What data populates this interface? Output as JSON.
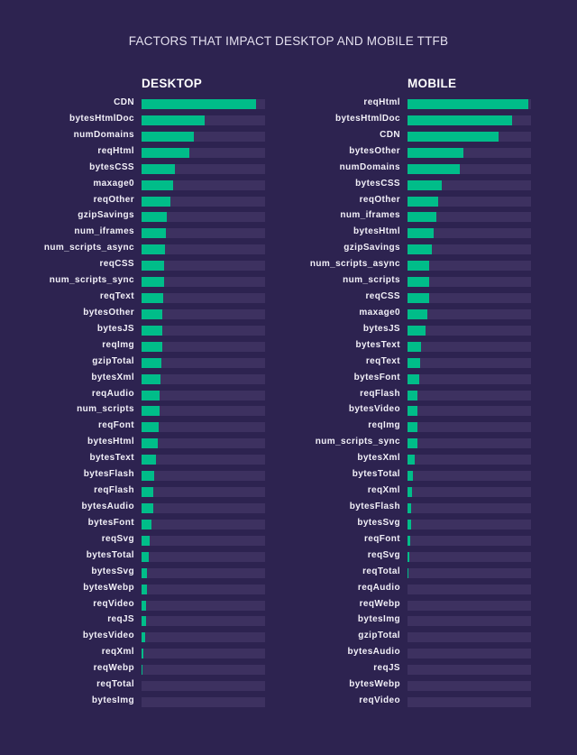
{
  "title": "FACTORS THAT IMPACT DESKTOP AND MOBILE TTFB",
  "colors": {
    "background": "#2d2350",
    "track": "#3d3160",
    "bar": "#00bd89",
    "text": "#ffffff"
  },
  "desktop": {
    "heading": "DESKTOP",
    "rows": [
      {
        "label": "CDN",
        "value": 0.93
      },
      {
        "label": "bytesHtmlDoc",
        "value": 0.51
      },
      {
        "label": "numDomains",
        "value": 0.42
      },
      {
        "label": "reqHtml",
        "value": 0.39
      },
      {
        "label": "bytesCSS",
        "value": 0.27
      },
      {
        "label": "maxage0",
        "value": 0.255
      },
      {
        "label": "reqOther",
        "value": 0.23
      },
      {
        "label": "gzipSavings",
        "value": 0.205
      },
      {
        "label": "num_iframes",
        "value": 0.195
      },
      {
        "label": "num_scripts_async",
        "value": 0.19
      },
      {
        "label": "reqCSS",
        "value": 0.185
      },
      {
        "label": "num_scripts_sync",
        "value": 0.18
      },
      {
        "label": "reqText",
        "value": 0.175
      },
      {
        "label": "bytesOther",
        "value": 0.17
      },
      {
        "label": "bytesJS",
        "value": 0.168
      },
      {
        "label": "reqImg",
        "value": 0.165
      },
      {
        "label": "gzipTotal",
        "value": 0.16
      },
      {
        "label": "bytesXml",
        "value": 0.153
      },
      {
        "label": "reqAudio",
        "value": 0.147
      },
      {
        "label": "num_scripts",
        "value": 0.145
      },
      {
        "label": "reqFont",
        "value": 0.142
      },
      {
        "label": "bytesHtml",
        "value": 0.13
      },
      {
        "label": "bytesText",
        "value": 0.117
      },
      {
        "label": "bytesFlash",
        "value": 0.105
      },
      {
        "label": "reqFlash",
        "value": 0.098
      },
      {
        "label": "bytesAudio",
        "value": 0.098
      },
      {
        "label": "bytesFont",
        "value": 0.08
      },
      {
        "label": "reqSvg",
        "value": 0.066
      },
      {
        "label": "bytesTotal",
        "value": 0.058
      },
      {
        "label": "bytesSvg",
        "value": 0.047
      },
      {
        "label": "bytesWebp",
        "value": 0.043
      },
      {
        "label": "reqVideo",
        "value": 0.036
      },
      {
        "label": "reqJS",
        "value": 0.033
      },
      {
        "label": "bytesVideo",
        "value": 0.026
      },
      {
        "label": "reqXml",
        "value": 0.018
      },
      {
        "label": "reqWebp",
        "value": 0.004
      },
      {
        "label": "reqTotal",
        "value": 0.0
      },
      {
        "label": "bytesImg",
        "value": 0.0
      }
    ]
  },
  "mobile": {
    "heading": "MOBILE",
    "rows": [
      {
        "label": "reqHtml",
        "value": 0.98
      },
      {
        "label": "bytesHtmlDoc",
        "value": 0.85
      },
      {
        "label": "CDN",
        "value": 0.74
      },
      {
        "label": "bytesOther",
        "value": 0.455
      },
      {
        "label": "numDomains",
        "value": 0.42
      },
      {
        "label": "bytesCSS",
        "value": 0.28
      },
      {
        "label": "reqOther",
        "value": 0.25
      },
      {
        "label": "num_iframes",
        "value": 0.23
      },
      {
        "label": "bytesHtml",
        "value": 0.21
      },
      {
        "label": "gzipSavings",
        "value": 0.197
      },
      {
        "label": "num_scripts_async",
        "value": 0.177
      },
      {
        "label": "num_scripts",
        "value": 0.175
      },
      {
        "label": "reqCSS",
        "value": 0.172
      },
      {
        "label": "maxage0",
        "value": 0.16
      },
      {
        "label": "bytesJS",
        "value": 0.146
      },
      {
        "label": "bytesText",
        "value": 0.113
      },
      {
        "label": "reqText",
        "value": 0.102
      },
      {
        "label": "bytesFont",
        "value": 0.095
      },
      {
        "label": "reqFlash",
        "value": 0.077
      },
      {
        "label": "bytesVideo",
        "value": 0.077
      },
      {
        "label": "reqImg",
        "value": 0.077
      },
      {
        "label": "num_scripts_sync",
        "value": 0.077
      },
      {
        "label": "bytesXml",
        "value": 0.058
      },
      {
        "label": "bytesTotal",
        "value": 0.047
      },
      {
        "label": "reqXml",
        "value": 0.036
      },
      {
        "label": "bytesFlash",
        "value": 0.029
      },
      {
        "label": "bytesSvg",
        "value": 0.026
      },
      {
        "label": "reqFont",
        "value": 0.022
      },
      {
        "label": "reqSvg",
        "value": 0.015
      },
      {
        "label": "reqTotal",
        "value": 0.005
      },
      {
        "label": "reqAudio",
        "value": 0.0
      },
      {
        "label": "reqWebp",
        "value": 0.0
      },
      {
        "label": "bytesImg",
        "value": 0.0
      },
      {
        "label": "gzipTotal",
        "value": 0.0
      },
      {
        "label": "bytesAudio",
        "value": 0.0
      },
      {
        "label": "reqJS",
        "value": 0.0
      },
      {
        "label": "bytesWebp",
        "value": 0.0
      },
      {
        "label": "reqVideo",
        "value": 0.0
      }
    ]
  },
  "chart_data": [
    {
      "type": "bar",
      "orientation": "horizontal",
      "title": "FACTORS THAT IMPACT DESKTOP AND MOBILE TTFB",
      "subtitle": "DESKTOP",
      "xlabel": "",
      "ylabel": "",
      "xlim": [
        0,
        1
      ],
      "grid": false,
      "legend": null,
      "categories": [
        "CDN",
        "bytesHtmlDoc",
        "numDomains",
        "reqHtml",
        "bytesCSS",
        "maxage0",
        "reqOther",
        "gzipSavings",
        "num_iframes",
        "num_scripts_async",
        "reqCSS",
        "num_scripts_sync",
        "reqText",
        "bytesOther",
        "bytesJS",
        "reqImg",
        "gzipTotal",
        "bytesXml",
        "reqAudio",
        "num_scripts",
        "reqFont",
        "bytesHtml",
        "bytesText",
        "bytesFlash",
        "reqFlash",
        "bytesAudio",
        "bytesFont",
        "reqSvg",
        "bytesTotal",
        "bytesSvg",
        "bytesWebp",
        "reqVideo",
        "reqJS",
        "bytesVideo",
        "reqXml",
        "reqWebp",
        "reqTotal",
        "bytesImg"
      ],
      "values": [
        0.93,
        0.51,
        0.42,
        0.39,
        0.27,
        0.255,
        0.23,
        0.205,
        0.195,
        0.19,
        0.185,
        0.18,
        0.175,
        0.17,
        0.168,
        0.165,
        0.16,
        0.153,
        0.147,
        0.145,
        0.142,
        0.13,
        0.117,
        0.105,
        0.098,
        0.098,
        0.08,
        0.066,
        0.058,
        0.047,
        0.043,
        0.036,
        0.033,
        0.026,
        0.018,
        0.004,
        0.0,
        0.0
      ]
    },
    {
      "type": "bar",
      "orientation": "horizontal",
      "title": "FACTORS THAT IMPACT DESKTOP AND MOBILE TTFB",
      "subtitle": "MOBILE",
      "xlabel": "",
      "ylabel": "",
      "xlim": [
        0,
        1
      ],
      "grid": false,
      "legend": null,
      "categories": [
        "reqHtml",
        "bytesHtmlDoc",
        "CDN",
        "bytesOther",
        "numDomains",
        "bytesCSS",
        "reqOther",
        "num_iframes",
        "bytesHtml",
        "gzipSavings",
        "num_scripts_async",
        "num_scripts",
        "reqCSS",
        "maxage0",
        "bytesJS",
        "bytesText",
        "reqText",
        "bytesFont",
        "reqFlash",
        "bytesVideo",
        "reqImg",
        "num_scripts_sync",
        "bytesXml",
        "bytesTotal",
        "reqXml",
        "bytesFlash",
        "bytesSvg",
        "reqFont",
        "reqSvg",
        "reqTotal",
        "reqAudio",
        "reqWebp",
        "bytesImg",
        "gzipTotal",
        "bytesAudio",
        "reqJS",
        "bytesWebp",
        "reqVideo"
      ],
      "values": [
        0.98,
        0.85,
        0.74,
        0.455,
        0.42,
        0.28,
        0.25,
        0.23,
        0.21,
        0.197,
        0.177,
        0.175,
        0.172,
        0.16,
        0.146,
        0.113,
        0.102,
        0.095,
        0.077,
        0.077,
        0.077,
        0.077,
        0.058,
        0.047,
        0.036,
        0.029,
        0.026,
        0.022,
        0.015,
        0.005,
        0.0,
        0.0,
        0.0,
        0.0,
        0.0,
        0.0,
        0.0,
        0.0
      ]
    }
  ]
}
